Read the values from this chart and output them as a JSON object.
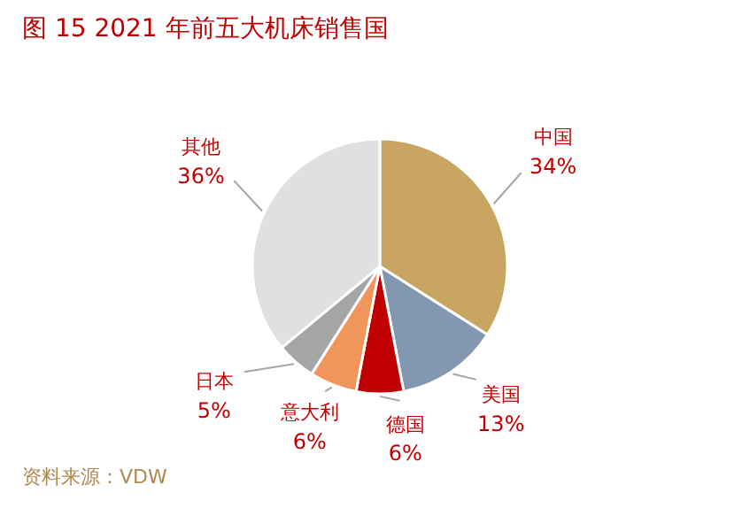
{
  "chart_data": {
    "type": "pie",
    "title": "图 15   2021 年前五大机床销售国",
    "categories": [
      "中国",
      "美国",
      "德国",
      "意大利",
      "日本",
      "其他"
    ],
    "values": [
      34,
      13,
      6,
      6,
      5,
      36
    ],
    "value_labels": [
      "34%",
      "13%",
      "6%",
      "6%",
      "5%",
      "36%"
    ],
    "colors": [
      "#c9a562",
      "#8497b0",
      "#c00000",
      "#f0965a",
      "#a5a5a5",
      "#e0e0e0"
    ],
    "annotations": [
      "资料来源：VDW"
    ]
  }
}
